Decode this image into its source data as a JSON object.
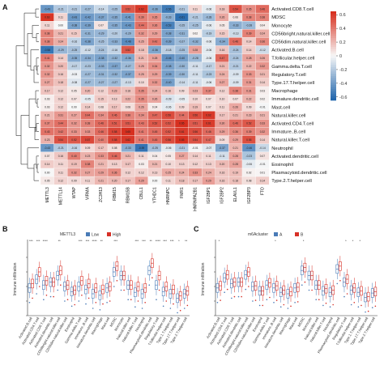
{
  "panels": {
    "a": {
      "letter": "A"
    },
    "b": {
      "letter": "B",
      "legend_title": "METTL3",
      "legend": [
        "Low",
        "High"
      ],
      "ylabel": "Immune infiltration"
    },
    "c": {
      "letter": "C",
      "legend_title": "m6Acluster",
      "legend": [
        "A",
        "B"
      ],
      "ylabel": "Immune infiltration"
    }
  },
  "colors": {
    "neg": "#2166ac",
    "mid": "#f7f7f7",
    "pos": "#d7301f",
    "low": "#4a7bb7",
    "high": "#d73027"
  },
  "chart_data": [
    {
      "type": "heatmap",
      "columns": [
        "METTL3",
        "METTL14",
        "WTAP",
        "VIRMA",
        "ZC3H13",
        "RBM15",
        "RBM15B",
        "CBLL1",
        "YTHDC1",
        "HNRNPC",
        "FMR1",
        "HNRNPA2B1",
        "IGF2BP1",
        "IGF2BP2",
        "ELAVL1",
        "IGF2BP3",
        "FTO"
      ],
      "rows": [
        "Activated.CD8.T.cell",
        "MDSC",
        "Monocyte",
        "CD56bright.natural.killer.cell",
        "CD56dim.natural.killer.cell",
        "Activated.B.cell",
        "T.follicular.helper.cell",
        "Gamma.delta.T.cell",
        "Regulatory.T.cell",
        "Type.17.T.helper.cell",
        "Macrophage",
        "Immature.dendritic.cell",
        "Mast.cell",
        "Natural.killer.cell",
        "Activated.CD4.T.cell",
        "Immature..B.cell",
        "Natural.killer.T.cell",
        "Neutrophil",
        "Activated.dendritic.cell",
        "Eosinophil",
        "Plasmacytoid.dendritic.cell",
        "Type.2.T.helper.cell"
      ],
      "values": [
        [
          -0.43,
          -0.21,
          -0.21,
          -0.27,
          -0.14,
          -0.25,
          0.52,
          0.62,
          -0.36,
          -0.56,
          -0.21,
          0.11,
          -0.06,
          0.18,
          0.54,
          0.35,
          0.46
        ],
        [
          0.63,
          0.11,
          -0.43,
          -0.42,
          -0.37,
          -0.35,
          -0.41,
          0.39,
          0.35,
          -0.33,
          -0.61,
          -0.21,
          -0.28,
          0.26,
          0.06,
          0.38,
          0.38
        ],
        [
          0.11,
          0.0,
          -0.38,
          -0.39,
          0.07,
          -0.35,
          -0.43,
          0.44,
          0.36,
          -0.53,
          -0.25,
          -0.25,
          -0.06,
          0.05,
          -0.33,
          -0.28,
          0.04
        ],
        [
          0.38,
          0.21,
          0.15,
          -0.31,
          -0.29,
          -0.2,
          -0.29,
          0.32,
          0.29,
          -0.38,
          -0.31,
          0.02,
          -0.19,
          0.15,
          -0.13,
          0.39,
          0.24
        ],
        [
          0.38,
          0.24,
          -0.16,
          -0.38,
          -0.25,
          -0.33,
          -0.48,
          0.25,
          0.42,
          -0.39,
          -0.27,
          -0.32,
          -0.06,
          -0.34,
          0.46,
          0.14,
          0.36
        ],
        [
          -0.58,
          -0.29,
          -0.25,
          -0.12,
          -0.24,
          -0.16,
          0.52,
          0.18,
          -0.36,
          -0.18,
          -0.25,
          0.28,
          -0.06,
          0.16,
          -0.24,
          0.14,
          -0.12
        ],
        [
          0.41,
          0.14,
          -0.35,
          -0.34,
          -0.38,
          -0.32,
          -0.36,
          0.21,
          0.28,
          -0.46,
          -0.4,
          -0.28,
          -0.06,
          0.47,
          -0.24,
          0.28,
          0.26
        ],
        [
          0.32,
          0.2,
          -0.17,
          -0.23,
          -0.33,
          -0.37,
          -0.27,
          0.25,
          0.34,
          -0.38,
          -0.3,
          -0.11,
          -0.17,
          0.21,
          -0.21,
          0.22,
          0.32
        ],
        [
          0.32,
          0.16,
          -0.03,
          -0.27,
          -0.31,
          -0.32,
          -0.37,
          0.25,
          0.29,
          -0.39,
          -0.3,
          -0.11,
          -0.23,
          0.24,
          -0.09,
          0.33,
          0.21
        ],
        [
          0.27,
          0.18,
          -0.08,
          -0.27,
          -0.27,
          -0.27,
          -0.13,
          0.1,
          0.32,
          -0.4,
          -0.14,
          -0.11,
          -0.06,
          0.27,
          -0.09,
          0.31,
          0.14
        ],
        [
          0.17,
          0.12,
          0.05,
          0.2,
          0.12,
          0.23,
          0.18,
          0.35,
          0.24,
          0.16,
          0.09,
          0.23,
          0.37,
          0.12,
          0.38,
          0.31,
          0.03
        ],
        [
          0.03,
          0.12,
          0.07,
          -0.05,
          0.15,
          0.13,
          0.22,
          0.35,
          0.26,
          -0.09,
          -0.05,
          0.1,
          0.07,
          0.1,
          0.07,
          0.22,
          0.02
        ],
        [
          0.03,
          0.12,
          0.0,
          0.14,
          0.08,
          0.17,
          0.08,
          0.26,
          0.04,
          -0.06,
          0.09,
          0.19,
          0.07,
          0.11,
          0.26,
          0.09,
          -0.01
        ],
        [
          0.21,
          0.31,
          0.27,
          0.44,
          0.34,
          0.46,
          0.38,
          0.34,
          0.47,
          0.56,
          0.44,
          0.56,
          0.62,
          0.17,
          0.21,
          0.23,
          0.21
        ],
        [
          0.37,
          0.44,
          0.32,
          0.38,
          0.46,
          0.51,
          0.51,
          0.43,
          0.52,
          0.52,
          0.65,
          0.51,
          0.61,
          0.3,
          0.46,
          0.52,
          0.33
        ],
        [
          0.43,
          0.42,
          0.33,
          0.33,
          0.46,
          0.58,
          0.65,
          0.41,
          0.45,
          0.52,
          0.61,
          0.56,
          0.46,
          0.29,
          0.36,
          0.39,
          0.32
        ],
        [
          0.23,
          0.54,
          0.52,
          0.57,
          0.4,
          0.58,
          0.62,
          0.41,
          0.45,
          0.56,
          0.65,
          0.54,
          0.47,
          0.09,
          0.29,
          0.55,
          0.14
        ],
        [
          -0.43,
          -0.21,
          -0.16,
          0.09,
          0.17,
          0.08,
          -0.33,
          -0.59,
          -0.25,
          -0.06,
          -0.21,
          -0.01,
          -0.07,
          -0.37,
          0.21,
          -0.46,
          -0.14
        ],
        [
          0.07,
          0.16,
          0.4,
          0.23,
          0.33,
          0.46,
          0.21,
          0.11,
          0.04,
          0.05,
          0.27,
          0.14,
          0.11,
          -0.11,
          0.28,
          -0.23,
          0.07
        ],
        [
          0.14,
          0.11,
          0.19,
          0.38,
          0.21,
          0.13,
          0.17,
          0.03,
          0.21,
          0.1,
          0.13,
          0.12,
          0.13,
          0.2,
          0.28,
          -0.06,
          -0.01
        ],
        [
          0.0,
          0.11,
          0.32,
          0.27,
          0.29,
          0.36,
          0.12,
          0.12,
          0.13,
          0.25,
          0.24,
          0.33,
          0.24,
          0.16,
          0.19,
          0.02,
          0.01
        ],
        [
          0.05,
          0.12,
          0.09,
          0.11,
          0.21,
          0.2,
          0.17,
          0.29,
          0.0,
          0.11,
          0.18,
          0.17,
          0.29,
          0.16,
          0.18,
          0.08,
          0.14
        ]
      ],
      "colorbar": {
        "ticks": [
          0.6,
          0.4,
          0.2,
          0,
          -0.2,
          -0.4,
          -0.6
        ],
        "range": [
          -0.65,
          0.65
        ]
      }
    },
    {
      "type": "box",
      "legend_title": "METTL3",
      "ylabel": "Immune infiltration",
      "categories": [
        "Activated.B.cell",
        "Activated.CD4.T.cell",
        "Activated.CD8.T.cell",
        "Activated.dendritic.cell",
        "CD56bright.natural.killer.cell",
        "CD56dim.natural.killer.cell",
        "Eosinophil",
        "Gamma.delta.T.cell",
        "Immature..B.cell",
        "Immature.dendritic.cell",
        "Macrophage",
        "Mast.cell",
        "MDSC",
        "Monocyte",
        "Natural.killer.cell",
        "Natural.killer.T.cell",
        "Neutrophil",
        "Plasmacytoid.dendritic.cell",
        "Regulatory.T.cell",
        "T.follicular.helper.cell",
        "Type.1.T.helper.cell",
        "Type.17.T.helper.cell",
        "Type.2.T.helper.cell"
      ],
      "significance": [
        "***",
        "***",
        "****",
        "",
        "**",
        "",
        "",
        "***",
        "***",
        "****",
        "**",
        "",
        "***",
        "",
        "",
        "***",
        "***",
        "**",
        "****",
        "***",
        "***",
        "*",
        "**"
      ],
      "series": [
        {
          "name": "Low",
          "median": [
            0.38,
            0.5,
            0.42,
            0.46,
            0.55,
            0.4,
            0.33,
            0.4,
            0.36,
            0.3,
            0.28,
            0.38,
            0.6,
            0.55,
            0.42,
            0.32,
            0.3,
            0.62,
            0.42,
            0.33,
            0.3,
            0.24,
            0.3
          ]
        },
        {
          "name": "High",
          "median": [
            0.44,
            0.6,
            0.48,
            0.46,
            0.62,
            0.42,
            0.35,
            0.48,
            0.44,
            0.38,
            0.36,
            0.4,
            0.68,
            0.55,
            0.42,
            0.4,
            0.38,
            0.72,
            0.55,
            0.4,
            0.36,
            0.27,
            0.34
          ]
        }
      ]
    },
    {
      "type": "box",
      "legend_title": "m6Acluster",
      "ylabel": "Immune infiltration",
      "categories": [
        "Activated.B.cell",
        "Activated.CD4.T.cell",
        "Activated.CD8.T.cell",
        "Activated.dendritic.cell",
        "CD56bright.natural.killer.cell",
        "CD56dim.natural.killer.cell",
        "Eosinophil",
        "Gamma.delta.T.cell",
        "Immature..B.cell",
        "Immature.dendritic.cell",
        "Macrophage",
        "Mast.cell",
        "MDSC",
        "Monocyte",
        "Natural.killer.cell",
        "Natural.killer.T.cell",
        "Neutrophil",
        "Plasmacytoid.dendritic.cell",
        "Regulatory.T.cell",
        "T.follicular.helper.cell",
        "Type.1.T.helper.cell",
        "Type.17.T.helper.cell",
        "Type.2.T.helper.cell"
      ],
      "significance": [
        "*",
        "",
        "",
        "",
        "",
        "",
        "",
        "",
        "*",
        "",
        "",
        "",
        "*",
        "",
        "",
        "",
        "",
        "",
        "*",
        "*",
        "*",
        "",
        ""
      ],
      "series": [
        {
          "name": "A",
          "median": [
            0.38,
            0.52,
            0.44,
            0.46,
            0.56,
            0.4,
            0.34,
            0.42,
            0.38,
            0.32,
            0.3,
            0.38,
            0.62,
            0.55,
            0.42,
            0.34,
            0.32,
            0.64,
            0.46,
            0.35,
            0.32,
            0.25,
            0.31
          ]
        },
        {
          "name": "B",
          "median": [
            0.41,
            0.56,
            0.46,
            0.46,
            0.6,
            0.41,
            0.34,
            0.45,
            0.41,
            0.35,
            0.33,
            0.39,
            0.66,
            0.55,
            0.42,
            0.37,
            0.35,
            0.68,
            0.5,
            0.38,
            0.34,
            0.26,
            0.33
          ]
        }
      ]
    }
  ]
}
